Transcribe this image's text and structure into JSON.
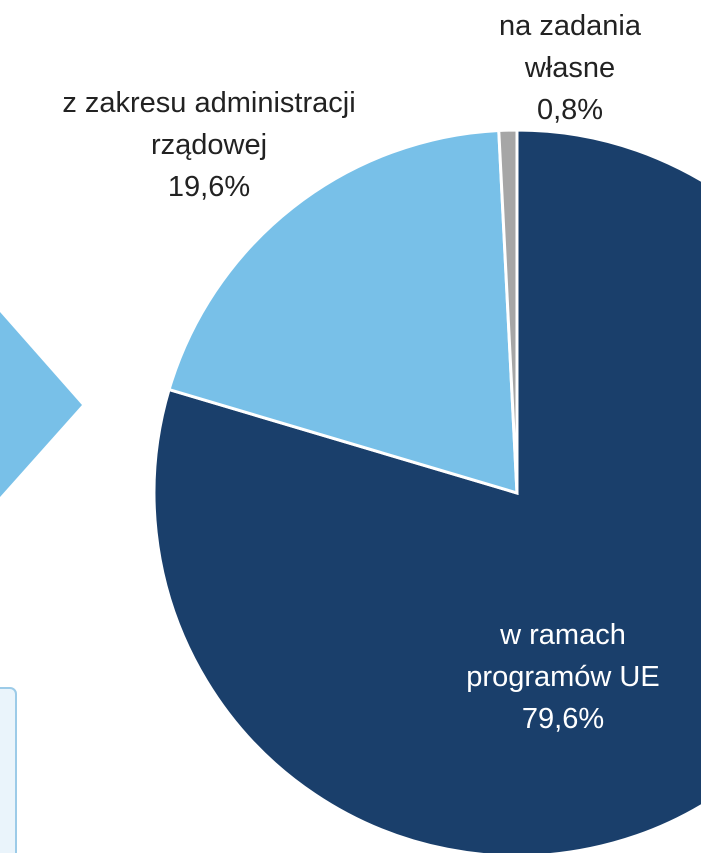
{
  "chart_data": {
    "type": "pie",
    "categories": [
      "w ramach programów UE",
      "z zakresu administracji rządowej",
      "na zadania własne"
    ],
    "values": [
      79.6,
      19.6,
      0.8
    ],
    "value_labels": [
      "79,6%",
      "19,6%",
      "0,8%"
    ],
    "colors": [
      "#1a3f6b",
      "#78c0e8",
      "#a6a6a6"
    ]
  }
}
